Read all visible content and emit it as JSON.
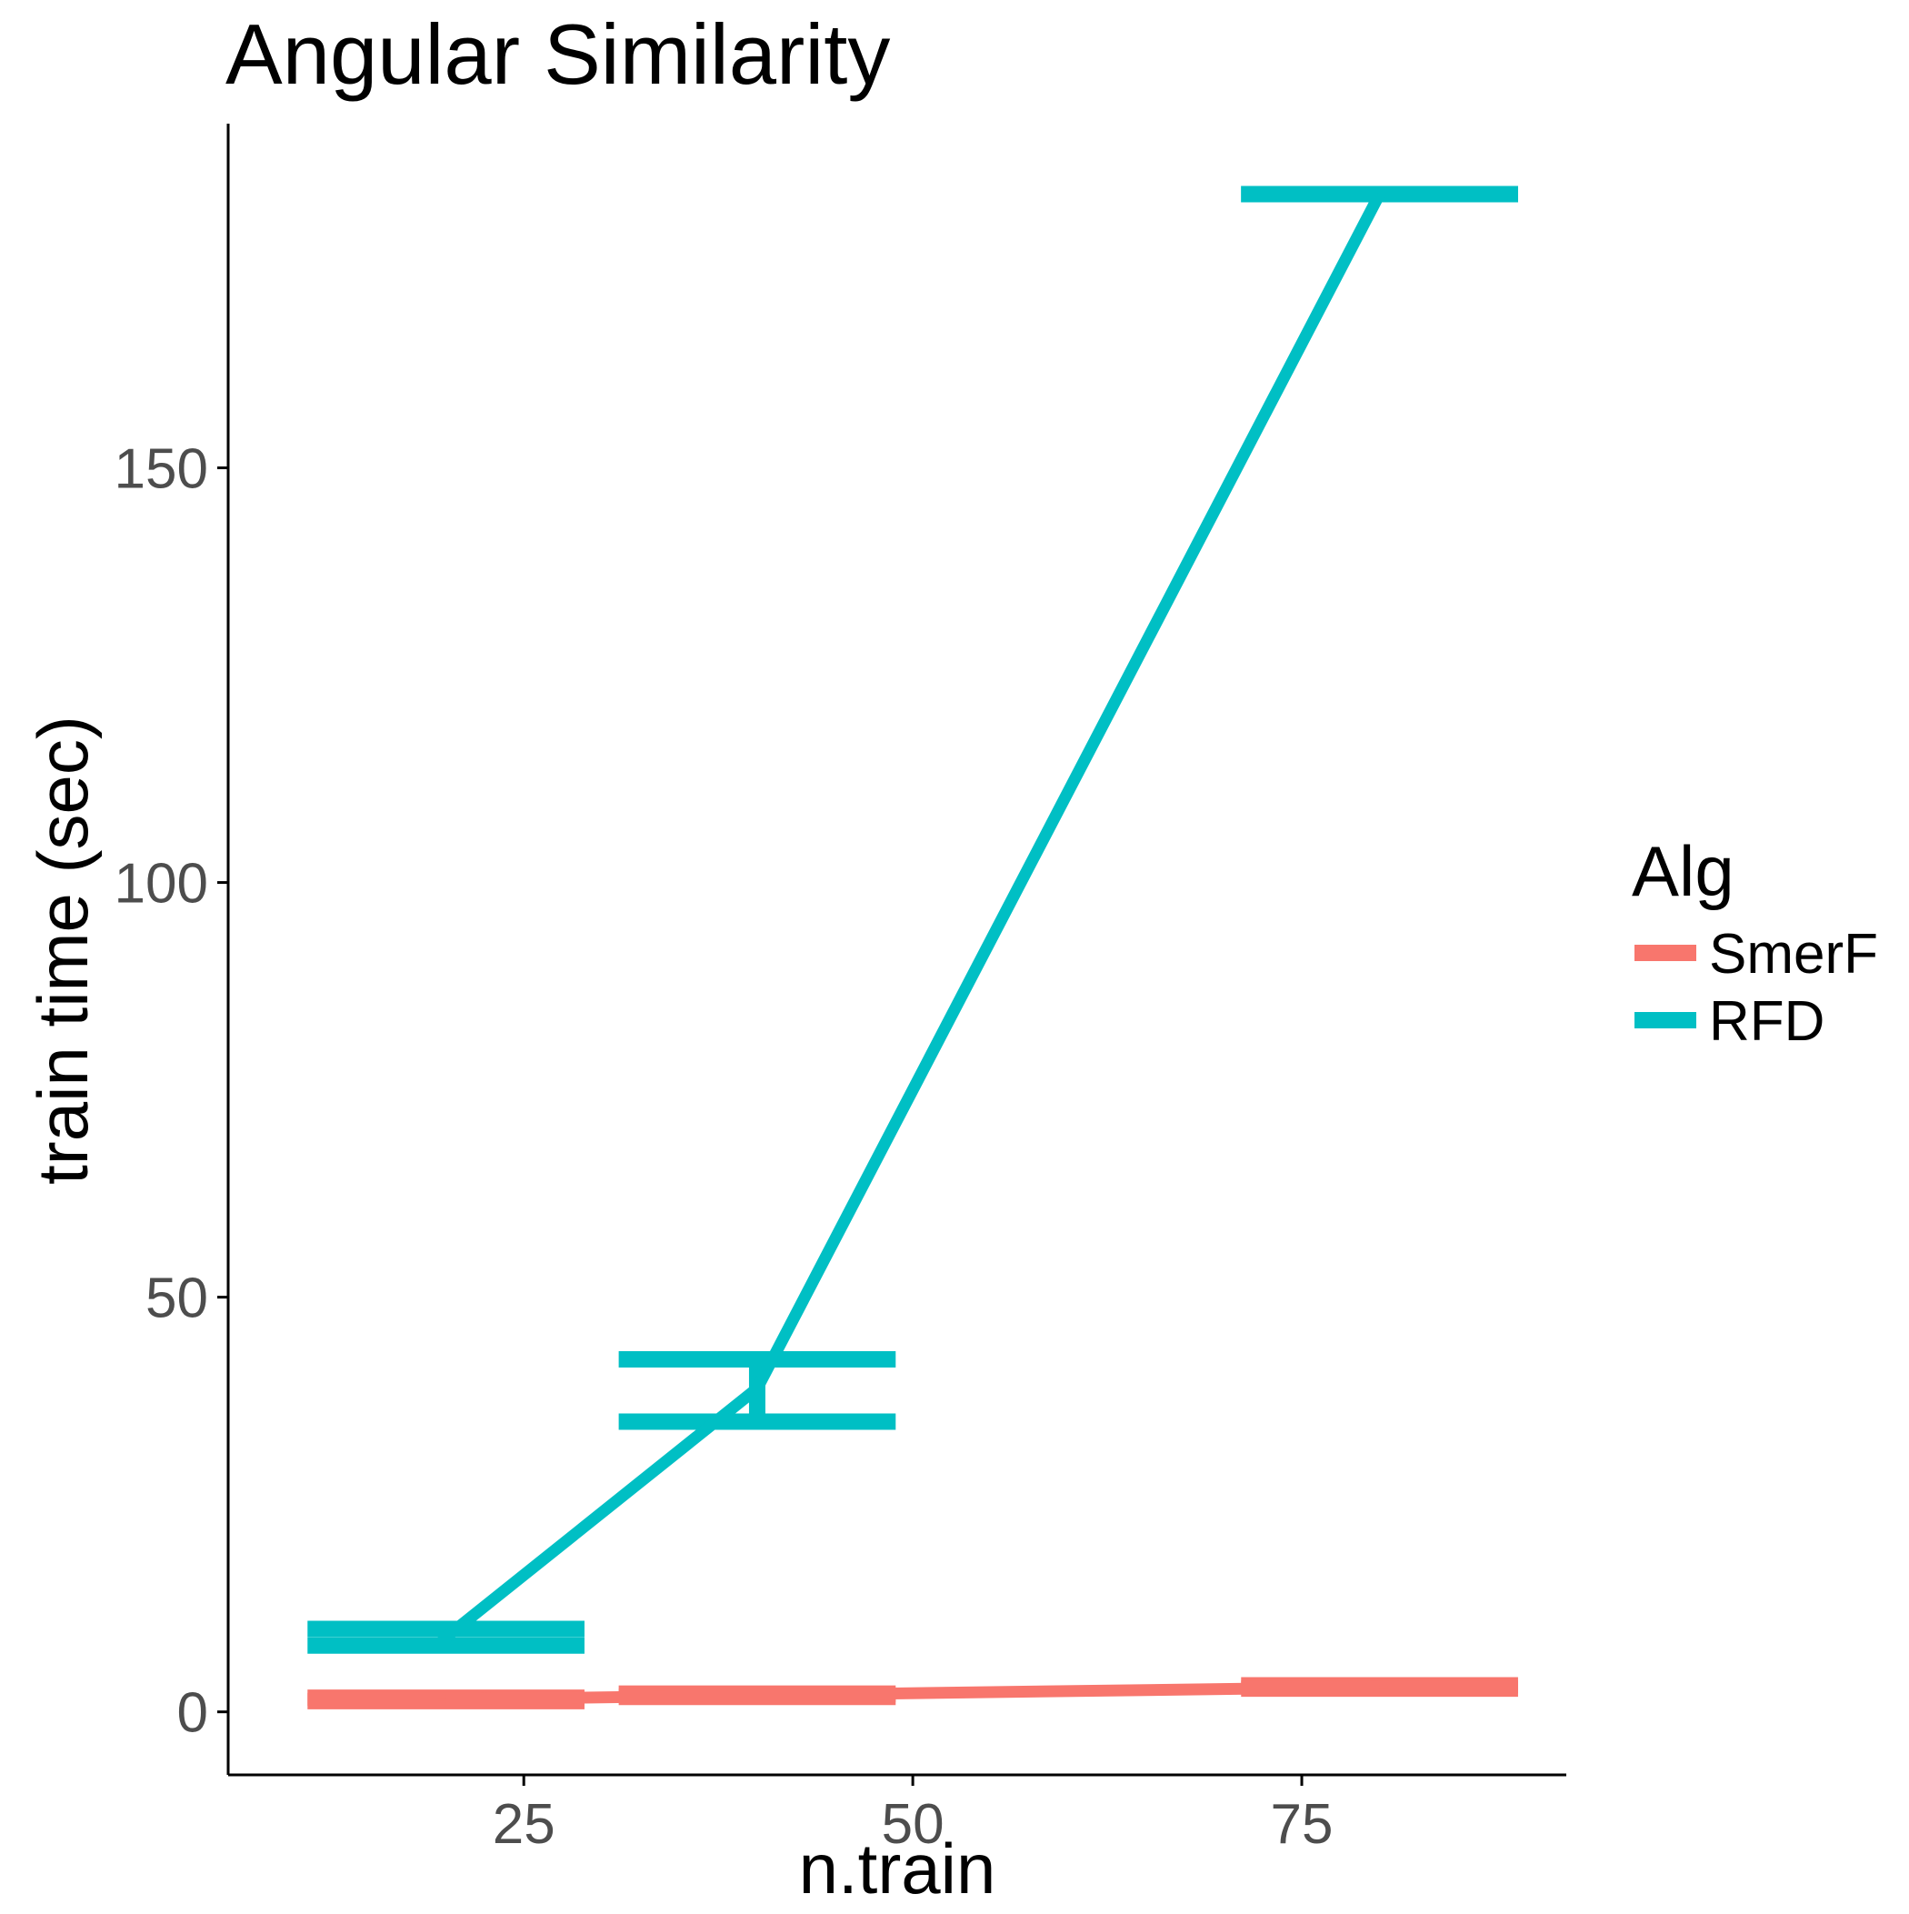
{
  "chart_data": {
    "type": "line",
    "title": "Angular Similarity",
    "xlabel": "n.train",
    "ylabel": "train time (sec)",
    "xlim": [
      6,
      92
    ],
    "ylim": [
      -7.6,
      191.5
    ],
    "x_ticks": [
      25,
      50,
      75
    ],
    "y_ticks": [
      0,
      50,
      100,
      150
    ],
    "grid": false,
    "legend_position": "right",
    "legend_title": "Alg",
    "series": [
      {
        "name": "SmerF",
        "color": "#F8766D",
        "points": [
          {
            "x": 20,
            "y": 1.5,
            "ymin": 1.3,
            "ymax": 1.7
          },
          {
            "x": 40,
            "y": 2.0,
            "ymin": 1.8,
            "ymax": 2.2
          },
          {
            "x": 80,
            "y": 3.0,
            "ymin": 2.8,
            "ymax": 3.2
          }
        ]
      },
      {
        "name": "RFD",
        "color": "#00BFC4",
        "points": [
          {
            "x": 20,
            "y": 9.0,
            "ymin": 8.0,
            "ymax": 10.0
          },
          {
            "x": 40,
            "y": 39.0,
            "ymin": 35.0,
            "ymax": 42.5
          },
          {
            "x": 80,
            "y": 183.0,
            "ymin": 183.0,
            "ymax": 183.0
          }
        ]
      }
    ]
  }
}
